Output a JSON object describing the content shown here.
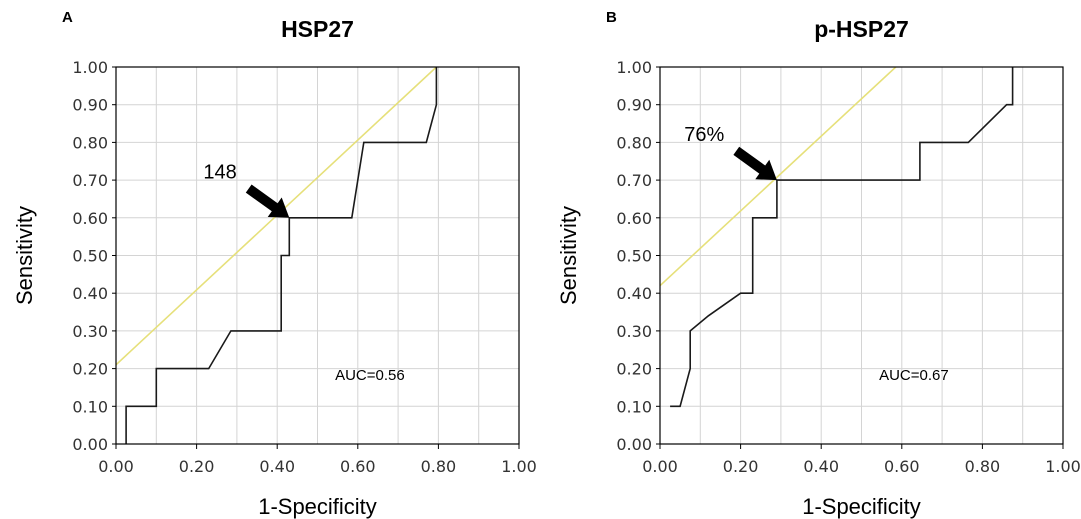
{
  "colors": {
    "roc_line": "#1a1a1a",
    "reference_line": "#e6e07a",
    "grid": "#d4d4d4",
    "frame": "#000000",
    "arrow": "#000000"
  },
  "chart_data": [
    {
      "panel": "A",
      "type": "line",
      "title": "HSP27",
      "xlabel": "1-Specificity",
      "ylabel": "Sensitivity",
      "xlim": [
        0,
        1
      ],
      "ylim": [
        0,
        1
      ],
      "grid": true,
      "x_ticks": [
        "0.00",
        "0.20",
        "0.40",
        "0.60",
        "0.80",
        "1.00"
      ],
      "y_ticks": [
        "0.00",
        "0.10",
        "0.20",
        "0.30",
        "0.40",
        "0.50",
        "0.60",
        "0.70",
        "0.80",
        "0.90",
        "1.00"
      ],
      "series": [
        {
          "style": "solid-dark",
          "x": [
            0.025,
            0.025,
            0.1,
            0.1,
            0.23,
            0.285,
            0.41,
            0.41,
            0.43,
            0.43,
            0.585,
            0.615,
            0.77,
            0.795,
            0.795
          ],
          "y": [
            0.0,
            0.1,
            0.1,
            0.2,
            0.2,
            0.3,
            0.3,
            0.5,
            0.5,
            0.6,
            0.6,
            0.8,
            0.8,
            0.9,
            1.0
          ]
        },
        {
          "style": "reference-line",
          "x": [
            0.0,
            0.795
          ],
          "y": [
            0.21,
            1.0
          ]
        }
      ],
      "annotations": {
        "cutoff_label": "148",
        "cutoff_point": [
          0.43,
          0.6
        ],
        "auc_label": "AUC=0.56",
        "auc_position": [
          0.63,
          0.17
        ]
      }
    },
    {
      "panel": "B",
      "type": "line",
      "title": "p-HSP27",
      "xlabel": "1-Specificity",
      "ylabel": "Sensitivity",
      "xlim": [
        0,
        1
      ],
      "ylim": [
        0,
        1
      ],
      "grid": true,
      "x_ticks": [
        "0.00",
        "0.20",
        "0.40",
        "0.60",
        "0.80",
        "1.00"
      ],
      "y_ticks": [
        "0.00",
        "0.10",
        "0.20",
        "0.30",
        "0.40",
        "0.50",
        "0.60",
        "0.70",
        "0.80",
        "0.90",
        "1.00"
      ],
      "series": [
        {
          "style": "solid-dark",
          "x": [
            0.025,
            0.05,
            0.07,
            0.075,
            0.075,
            0.12,
            0.2,
            0.23,
            0.23,
            0.29,
            0.29,
            0.645,
            0.645,
            0.765,
            0.86,
            0.875,
            0.875
          ],
          "y": [
            0.1,
            0.1,
            0.18,
            0.2,
            0.3,
            0.34,
            0.4,
            0.4,
            0.6,
            0.6,
            0.7,
            0.7,
            0.8,
            0.8,
            0.9,
            0.9,
            1.0
          ]
        },
        {
          "style": "reference-line",
          "x": [
            0.0,
            0.585
          ],
          "y": [
            0.42,
            1.0
          ]
        }
      ],
      "annotations": {
        "cutoff_label": "76%",
        "cutoff_point": [
          0.29,
          0.7
        ],
        "auc_label": "AUC=0.67",
        "auc_position": [
          0.63,
          0.17
        ]
      }
    }
  ]
}
